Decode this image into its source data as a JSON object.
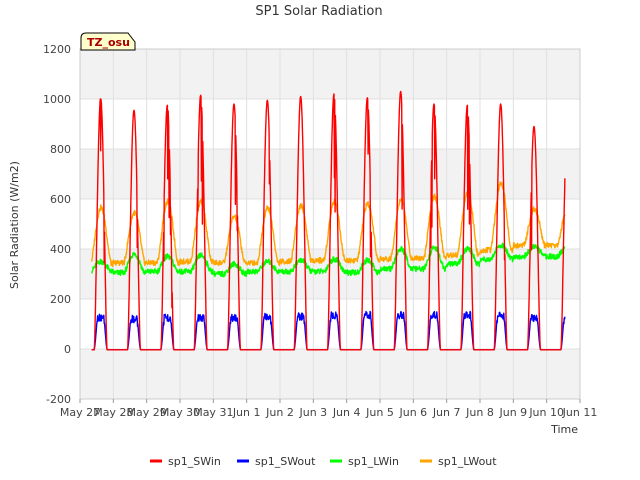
{
  "chart_data": {
    "type": "line",
    "title": "SP1 Solar Radiation",
    "xlabel": "Time",
    "ylabel": "Solar Radiation (W/m2)",
    "ylim": [
      -200,
      1200
    ],
    "xlim": [
      0,
      15
    ],
    "yticks": [
      -200,
      0,
      200,
      400,
      600,
      800,
      1000,
      1200
    ],
    "xticks": [
      {
        "day": 0,
        "label": "May 27"
      },
      {
        "day": 1,
        "label": "May 28"
      },
      {
        "day": 2,
        "label": "May 29"
      },
      {
        "day": 3,
        "label": "May 30"
      },
      {
        "day": 4,
        "label": "May 31"
      },
      {
        "day": 5,
        "label": "Jun 1"
      },
      {
        "day": 6,
        "label": "Jun 2"
      },
      {
        "day": 7,
        "label": "Jun 3"
      },
      {
        "day": 8,
        "label": "Jun 4"
      },
      {
        "day": 9,
        "label": "Jun 5"
      },
      {
        "day": 10,
        "label": "Jun 6"
      },
      {
        "day": 11,
        "label": "Jun 7"
      },
      {
        "day": 12,
        "label": "Jun 8"
      },
      {
        "day": 13,
        "label": "Jun 9"
      },
      {
        "day": 14,
        "label": "Jun 10"
      },
      {
        "day": 15,
        "label": "Jun 11"
      }
    ],
    "grid": true,
    "legend_position": "bottom",
    "annotation": "TZ_osu",
    "x_range_days": [
      0.35,
      14.55
    ],
    "series": [
      {
        "name": "sp1_SWin",
        "color": "#ff0000",
        "daily_peaks": [
          1005,
          955,
          975,
          1015,
          980,
          995,
          1010,
          1020,
          1005,
          1030,
          980,
          975,
          980,
          890
        ]
      },
      {
        "name": "sp1_SWout",
        "color": "#0000ff",
        "daily_peaks": [
          140,
          135,
          140,
          140,
          140,
          145,
          145,
          150,
          150,
          150,
          150,
          150,
          150,
          140
        ]
      },
      {
        "name": "sp1_LWin",
        "color": "#00ff00",
        "daily_peaks": [
          350,
          380,
          370,
          375,
          340,
          350,
          355,
          360,
          355,
          400,
          405,
          400,
          415,
          410
        ],
        "night_values": [
          310,
          305,
          310,
          310,
          300,
          310,
          310,
          310,
          305,
          320,
          320,
          340,
          360,
          370
        ]
      },
      {
        "name": "sp1_LWout",
        "color": "#ffa500",
        "daily_peaks": [
          565,
          545,
          590,
          590,
          530,
          565,
          575,
          590,
          580,
          600,
          610,
          625,
          665,
          560
        ],
        "night_values": [
          340,
          345,
          345,
          350,
          345,
          345,
          350,
          355,
          355,
          360,
          365,
          375,
          395,
          415
        ]
      }
    ]
  }
}
